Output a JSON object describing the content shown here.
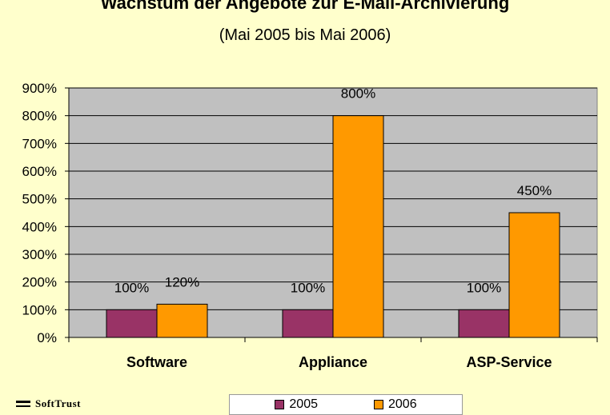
{
  "chart_data": {
    "type": "bar",
    "title": "Wachstum der Angebote zur E-Mail-Archivierung",
    "subtitle": "(Mai 2005 bis Mai 2006)",
    "categories": [
      "Software",
      "Appliance",
      "ASP-Service"
    ],
    "series": [
      {
        "name": "2005",
        "values": [
          100,
          100,
          100
        ],
        "color": "#993366",
        "labels": [
          "100%",
          "100%",
          "100%"
        ]
      },
      {
        "name": "2006",
        "values": [
          120,
          800,
          450
        ],
        "color": "#FF9900",
        "labels": [
          "120%",
          "800%",
          "450%"
        ]
      }
    ],
    "ylim": [
      0,
      900
    ],
    "yticks": [
      "0%",
      "100%",
      "200%",
      "300%",
      "400%",
      "500%",
      "600%",
      "700%",
      "800%",
      "900%"
    ],
    "grid": true,
    "plot_background": "#C0C0C0",
    "legend_position": "bottom"
  },
  "logo": {
    "text": "SoftTrust"
  }
}
